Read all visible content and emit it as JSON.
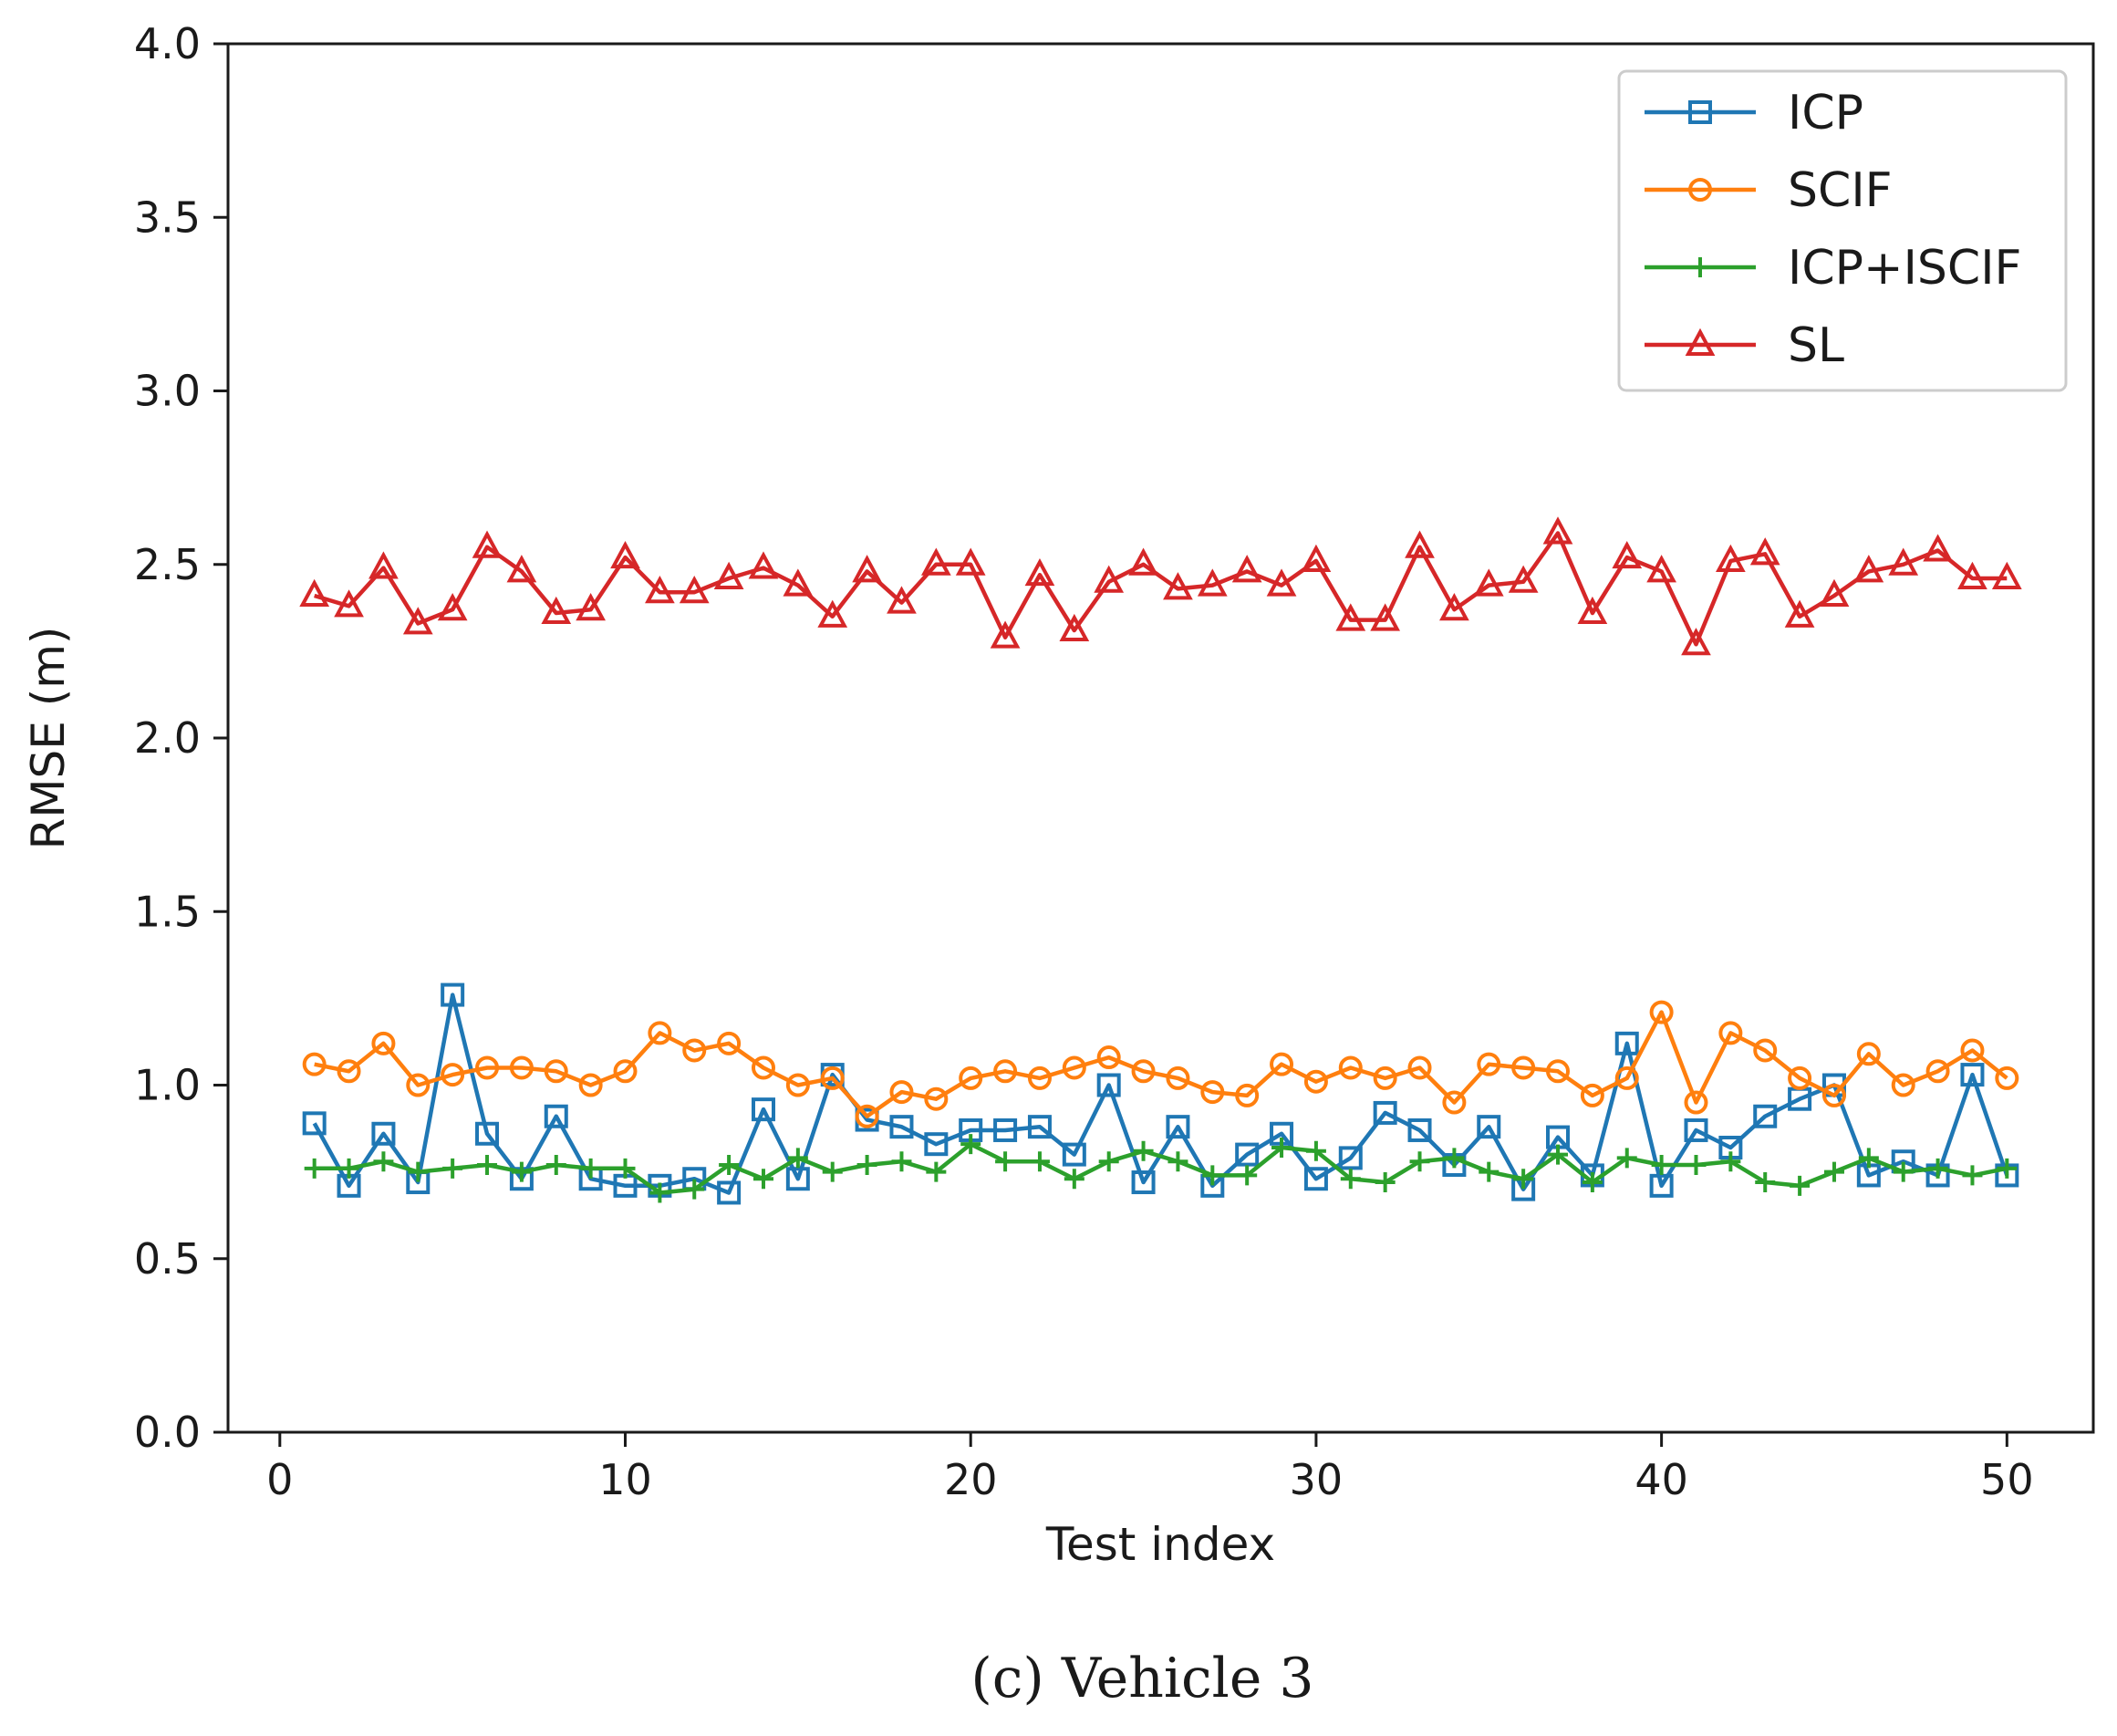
{
  "chart_data": {
    "type": "line",
    "xlabel": "Test index",
    "ylabel": "RMSE (m)",
    "caption": "(c) Vehicle 3",
    "xlim": [
      -1.5,
      52.5
    ],
    "ylim": [
      0.0,
      4.0
    ],
    "xticks": [
      0,
      10,
      20,
      30,
      40,
      50
    ],
    "xtick_labels": [
      "0",
      "10",
      "20",
      "30",
      "40",
      "50"
    ],
    "yticks": [
      0.0,
      0.5,
      1.0,
      1.5,
      2.0,
      2.5,
      3.0,
      3.5,
      4.0
    ],
    "ytick_labels": [
      "0.0",
      "0.5",
      "1.0",
      "1.5",
      "2.0",
      "2.5",
      "3.0",
      "3.5",
      "4.0"
    ],
    "legend_position": "top-right",
    "grid": false,
    "x": [
      1,
      2,
      3,
      4,
      5,
      6,
      7,
      8,
      9,
      10,
      11,
      12,
      13,
      14,
      15,
      16,
      17,
      18,
      19,
      20,
      21,
      22,
      23,
      24,
      25,
      26,
      27,
      28,
      29,
      30,
      31,
      32,
      33,
      34,
      35,
      36,
      37,
      38,
      39,
      40,
      41,
      42,
      43,
      44,
      45,
      46,
      47,
      48,
      49,
      50
    ],
    "series": [
      {
        "name": "ICP",
        "color": "#1f77b4",
        "marker": "square",
        "values": [
          0.89,
          0.71,
          0.86,
          0.72,
          1.26,
          0.86,
          0.73,
          0.91,
          0.73,
          0.71,
          0.71,
          0.73,
          0.69,
          0.93,
          0.73,
          1.03,
          0.9,
          0.88,
          0.83,
          0.87,
          0.87,
          0.88,
          0.8,
          1.0,
          0.72,
          0.88,
          0.71,
          0.8,
          0.86,
          0.73,
          0.79,
          0.92,
          0.87,
          0.77,
          0.88,
          0.7,
          0.85,
          0.74,
          1.12,
          0.71,
          0.87,
          0.82,
          0.91,
          0.96,
          1.0,
          0.74,
          0.78,
          0.74,
          1.03,
          0.74
        ]
      },
      {
        "name": "SCIF",
        "color": "#ff7f0e",
        "marker": "circle",
        "values": [
          1.06,
          1.04,
          1.12,
          1.0,
          1.03,
          1.05,
          1.05,
          1.04,
          1.0,
          1.04,
          1.15,
          1.1,
          1.12,
          1.05,
          1.0,
          1.02,
          0.91,
          0.98,
          0.96,
          1.02,
          1.04,
          1.02,
          1.05,
          1.08,
          1.04,
          1.02,
          0.98,
          0.97,
          1.06,
          1.01,
          1.05,
          1.02,
          1.05,
          0.95,
          1.06,
          1.05,
          1.04,
          0.97,
          1.02,
          1.21,
          0.95,
          1.15,
          1.1,
          1.02,
          0.97,
          1.09,
          1.0,
          1.04,
          1.1,
          1.02
        ]
      },
      {
        "name": "ICP+ISCIF",
        "color": "#2ca02c",
        "marker": "plus",
        "values": [
          0.76,
          0.76,
          0.78,
          0.75,
          0.76,
          0.77,
          0.75,
          0.77,
          0.76,
          0.76,
          0.69,
          0.7,
          0.77,
          0.73,
          0.79,
          0.75,
          0.77,
          0.78,
          0.75,
          0.83,
          0.78,
          0.78,
          0.73,
          0.78,
          0.81,
          0.78,
          0.74,
          0.74,
          0.82,
          0.81,
          0.73,
          0.72,
          0.78,
          0.79,
          0.75,
          0.73,
          0.8,
          0.72,
          0.79,
          0.77,
          0.77,
          0.78,
          0.72,
          0.71,
          0.75,
          0.79,
          0.75,
          0.76,
          0.74,
          0.76
        ]
      },
      {
        "name": "SL",
        "color": "#d62728",
        "marker": "triangle",
        "values": [
          2.41,
          2.38,
          2.49,
          2.33,
          2.37,
          2.55,
          2.48,
          2.36,
          2.37,
          2.52,
          2.42,
          2.42,
          2.46,
          2.49,
          2.44,
          2.35,
          2.48,
          2.39,
          2.5,
          2.5,
          2.29,
          2.47,
          2.31,
          2.45,
          2.5,
          2.43,
          2.44,
          2.48,
          2.44,
          2.51,
          2.34,
          2.34,
          2.55,
          2.37,
          2.44,
          2.45,
          2.59,
          2.36,
          2.52,
          2.48,
          2.27,
          2.51,
          2.53,
          2.35,
          2.41,
          2.48,
          2.5,
          2.54,
          2.46,
          2.46
        ]
      }
    ]
  }
}
